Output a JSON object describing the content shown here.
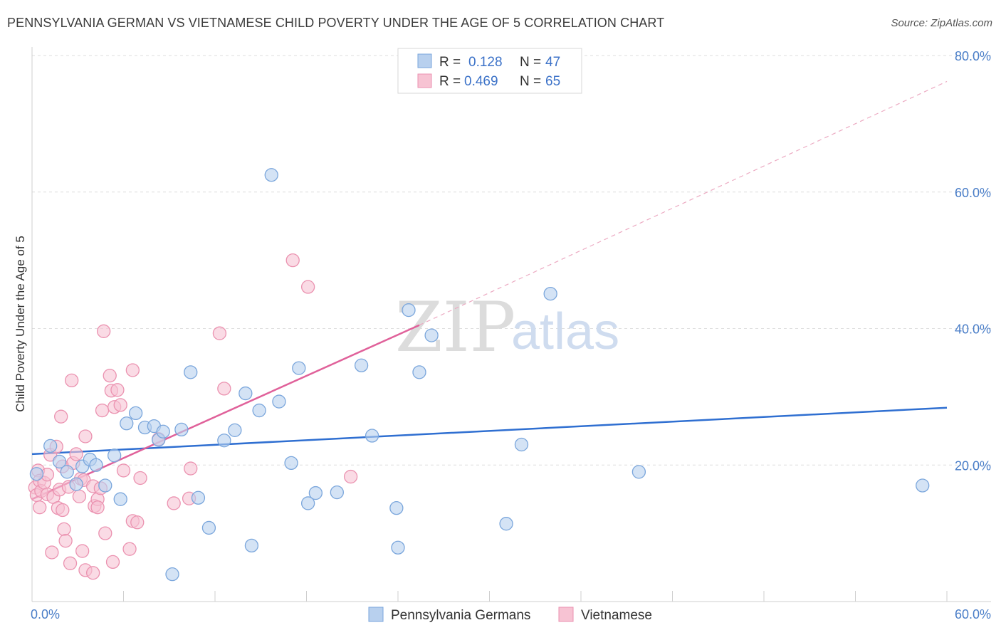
{
  "title": "PENNSYLVANIA GERMAN VS VIETNAMESE CHILD POVERTY UNDER THE AGE OF 5 CORRELATION CHART",
  "source": "Source: ZipAtlas.com",
  "watermark": {
    "zip": "ZIP",
    "atlas": "atlas"
  },
  "legend": {
    "r_label": "R =",
    "n_label": "N =",
    "rows": [
      {
        "series": "Pennsylvania Germans",
        "r": "0.128",
        "n": "47"
      },
      {
        "series": "Vietnamese",
        "r": "0.469",
        "n": "65"
      }
    ]
  },
  "chart_data": {
    "type": "scatter",
    "title": "PENNSYLVANIA GERMAN VS VIETNAMESE CHILD POVERTY UNDER THE AGE OF 5 CORRELATION CHART",
    "xlabel": "",
    "ylabel": "Child Poverty Under the Age of 5",
    "xlim": [
      0,
      60
    ],
    "ylim": [
      0,
      80
    ],
    "x_tick_labels": [
      "0.0%",
      "60.0%"
    ],
    "y_ticks": [
      20,
      40,
      60,
      80
    ],
    "y_tick_labels": [
      "20.0%",
      "40.0%",
      "60.0%",
      "80.0%"
    ],
    "grid": true,
    "legend_position": "top-center",
    "colors": {
      "Pennsylvania Germans": {
        "fill": "#b8d0ee",
        "stroke": "#7aa6dc",
        "line": "#2f6fd1"
      },
      "Vietnamese": {
        "fill": "#f7c3d3",
        "stroke": "#eb92b0",
        "line": "#e0619a"
      }
    },
    "series": [
      {
        "name": "Pennsylvania Germans",
        "points": [
          [
            0.3,
            18.7
          ],
          [
            1.2,
            22.8
          ],
          [
            1.8,
            20.5
          ],
          [
            2.3,
            19.0
          ],
          [
            2.9,
            17.2
          ],
          [
            3.3,
            19.8
          ],
          [
            3.8,
            20.8
          ],
          [
            4.2,
            20.0
          ],
          [
            4.8,
            17.0
          ],
          [
            5.4,
            21.4
          ],
          [
            5.8,
            15.0
          ],
          [
            6.2,
            26.1
          ],
          [
            6.8,
            27.6
          ],
          [
            7.4,
            25.5
          ],
          [
            8.0,
            25.7
          ],
          [
            8.3,
            23.7
          ],
          [
            8.6,
            24.9
          ],
          [
            9.2,
            4.0
          ],
          [
            9.8,
            25.2
          ],
          [
            10.4,
            33.6
          ],
          [
            10.9,
            15.2
          ],
          [
            11.6,
            10.8
          ],
          [
            12.6,
            23.6
          ],
          [
            13.3,
            25.1
          ],
          [
            14.0,
            30.5
          ],
          [
            14.4,
            8.2
          ],
          [
            14.9,
            28.0
          ],
          [
            15.7,
            62.5
          ],
          [
            16.2,
            29.3
          ],
          [
            17.0,
            20.3
          ],
          [
            17.5,
            34.2
          ],
          [
            18.1,
            14.4
          ],
          [
            18.6,
            15.9
          ],
          [
            20.0,
            16.0
          ],
          [
            21.6,
            34.6
          ],
          [
            22.3,
            24.3
          ],
          [
            23.9,
            13.7
          ],
          [
            24.0,
            7.9
          ],
          [
            24.7,
            42.7
          ],
          [
            25.4,
            33.6
          ],
          [
            26.2,
            39.0
          ],
          [
            31.1,
            11.4
          ],
          [
            32.1,
            23.0
          ],
          [
            34.0,
            45.1
          ],
          [
            39.8,
            19.0
          ],
          [
            58.4,
            17.0
          ]
        ],
        "trend": {
          "x0": 0,
          "y0": 21.6,
          "x1": 60,
          "y1": 28.4
        }
      },
      {
        "name": "Vietnamese",
        "points": [
          [
            0.2,
            16.7
          ],
          [
            0.3,
            15.6
          ],
          [
            0.4,
            19.2
          ],
          [
            0.5,
            17.7
          ],
          [
            0.5,
            13.8
          ],
          [
            0.6,
            16.2
          ],
          [
            0.8,
            17.4
          ],
          [
            1.0,
            18.6
          ],
          [
            1.0,
            15.7
          ],
          [
            1.2,
            21.5
          ],
          [
            1.3,
            7.2
          ],
          [
            1.4,
            15.3
          ],
          [
            1.6,
            22.7
          ],
          [
            1.7,
            13.7
          ],
          [
            1.8,
            16.4
          ],
          [
            1.9,
            27.1
          ],
          [
            2.0,
            13.4
          ],
          [
            2.0,
            19.8
          ],
          [
            2.1,
            10.6
          ],
          [
            2.2,
            8.9
          ],
          [
            2.4,
            16.8
          ],
          [
            2.5,
            5.6
          ],
          [
            2.6,
            32.4
          ],
          [
            2.7,
            20.3
          ],
          [
            2.9,
            21.6
          ],
          [
            3.1,
            15.4
          ],
          [
            3.2,
            18.0
          ],
          [
            3.3,
            7.4
          ],
          [
            3.4,
            17.8
          ],
          [
            3.5,
            4.6
          ],
          [
            3.5,
            24.2
          ],
          [
            4.0,
            16.9
          ],
          [
            4.0,
            4.2
          ],
          [
            4.1,
            14.0
          ],
          [
            4.3,
            15.0
          ],
          [
            4.3,
            13.8
          ],
          [
            4.5,
            16.6
          ],
          [
            4.6,
            28.0
          ],
          [
            4.7,
            39.6
          ],
          [
            4.8,
            10.0
          ],
          [
            5.1,
            33.1
          ],
          [
            5.2,
            30.9
          ],
          [
            5.3,
            5.8
          ],
          [
            5.4,
            28.5
          ],
          [
            5.6,
            31.0
          ],
          [
            5.8,
            28.8
          ],
          [
            6.0,
            19.2
          ],
          [
            6.4,
            7.7
          ],
          [
            6.6,
            33.9
          ],
          [
            6.6,
            11.8
          ],
          [
            6.9,
            11.6
          ],
          [
            7.1,
            18.1
          ],
          [
            8.3,
            23.8
          ],
          [
            9.3,
            14.4
          ],
          [
            10.3,
            15.1
          ],
          [
            10.4,
            19.5
          ],
          [
            12.3,
            39.3
          ],
          [
            12.6,
            31.2
          ],
          [
            17.1,
            50.0
          ],
          [
            18.1,
            46.1
          ],
          [
            20.9,
            18.3
          ]
        ],
        "trend": {
          "x0": 0,
          "y0": 15.0,
          "x1": 25.4,
          "y1": 40.5,
          "dash_x1": 60,
          "dash_y1": 76.2
        }
      }
    ]
  }
}
